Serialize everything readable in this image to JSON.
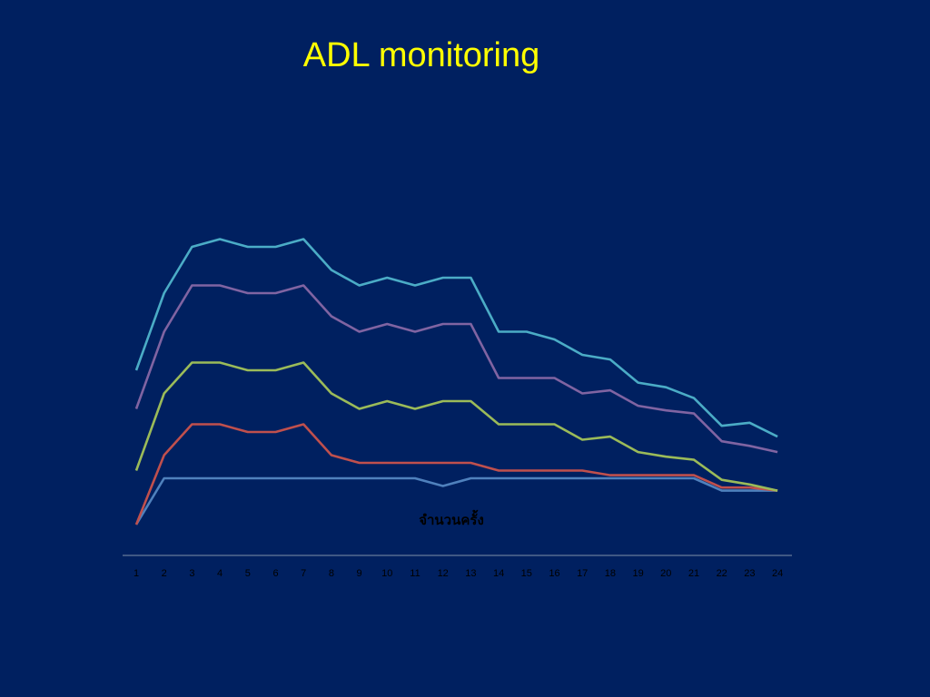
{
  "slide": {
    "title": "ADL monitoring",
    "background": "#002060",
    "title_color": "#FFFF00"
  },
  "chart_data": {
    "type": "line",
    "title": "ADL monitoring",
    "xlabel": "จำนวนครั้ง",
    "ylabel": "",
    "x": [
      1,
      2,
      3,
      4,
      5,
      6,
      7,
      8,
      9,
      10,
      11,
      12,
      13,
      14,
      15,
      16,
      17,
      18,
      19,
      20,
      21,
      22,
      23,
      24
    ],
    "ylim": [
      0,
      25
    ],
    "grid": false,
    "legend": "none",
    "stacked": true,
    "series": [
      {
        "color": "#4F81BD",
        "values": [
          0,
          3,
          3,
          3,
          3,
          3,
          3,
          3,
          3,
          3,
          3,
          2.5,
          3,
          3,
          3,
          3,
          3,
          3,
          3,
          3,
          3,
          2.2,
          2.2,
          2.2
        ]
      },
      {
        "color": "#C0504D",
        "values": [
          0,
          1.5,
          3.5,
          3.5,
          3,
          3,
          3.5,
          1.5,
          1,
          1,
          1,
          1.5,
          1,
          0.5,
          0.5,
          0.5,
          0.5,
          0.2,
          0.2,
          0.2,
          0.2,
          0.2,
          0.2,
          0
        ]
      },
      {
        "color": "#9BBB59",
        "values": [
          3.5,
          4,
          4,
          4,
          4,
          4,
          4,
          4,
          3.5,
          4,
          3.5,
          4,
          4,
          3,
          3,
          3,
          2,
          2.5,
          1.5,
          1.2,
          1,
          0.5,
          0.2,
          0
        ]
      },
      {
        "color": "#8064A2",
        "values": [
          4,
          4,
          5,
          5,
          5,
          5,
          5,
          5,
          5,
          5,
          5,
          5,
          5,
          3,
          3,
          3,
          3,
          3,
          3,
          3,
          3,
          2.5,
          2.5,
          2.5
        ]
      },
      {
        "color": "#4BACC6",
        "values": [
          2.5,
          2.5,
          2.5,
          3,
          3,
          3,
          3,
          3,
          3,
          3,
          3,
          3,
          3,
          3,
          3,
          2.5,
          2.5,
          2,
          1.5,
          1.5,
          1,
          1,
          1.5,
          1
        ]
      }
    ]
  }
}
